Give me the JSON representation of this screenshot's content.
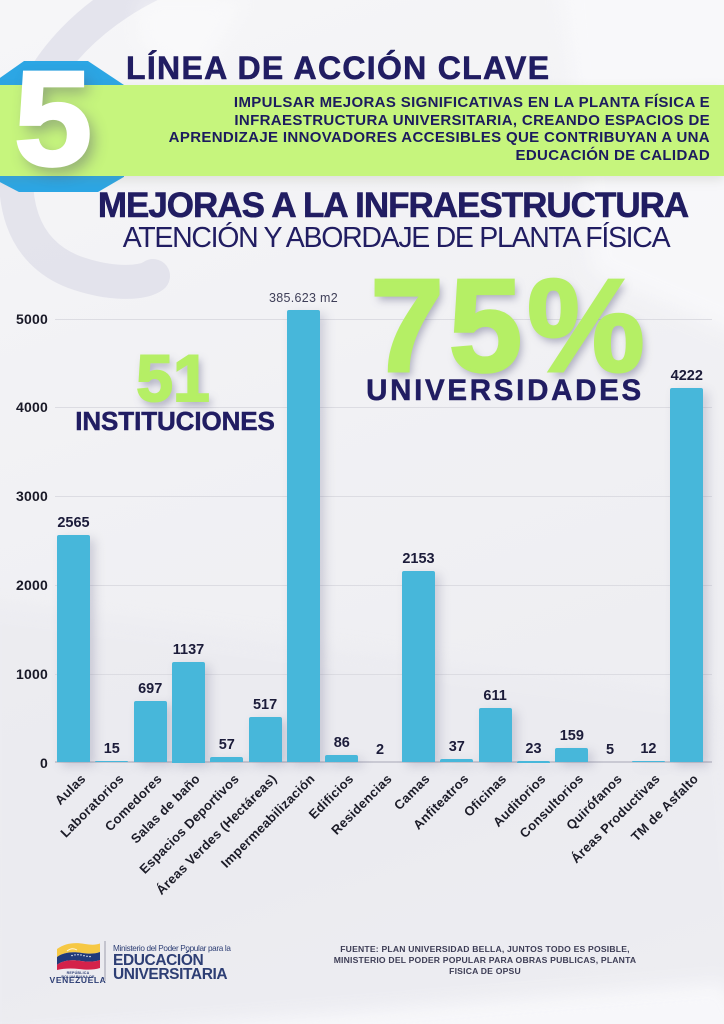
{
  "badge": {
    "number": "5"
  },
  "header": {
    "kicker": "LÍNEA DE ACCIÓN CLAVE",
    "description": "IMPULSAR MEJORAS SIGNIFICATIVAS EN LA PLANTA FÍSICA E\nINFRAESTRUCTURA UNIVERSITARIA, CREANDO ESPACIOS DE\nAPRENDIZAJE INNOVADORES ACCESIBLES QUE CONTRIBUYAN A UNA\nEDUCACIÓN DE CALIDAD",
    "title": "MEJORAS A LA INFRAESTRUCTURA",
    "subtitle": "ATENCIÓN Y ABORDAJE DE PLANTA FÍSICA"
  },
  "highlights": {
    "institutions": {
      "value": "51",
      "label": "INSTITUCIONES"
    },
    "universities": {
      "value": "75%",
      "label": "UNIVERSIDADES"
    }
  },
  "chart_data": {
    "type": "bar",
    "categories": [
      "Aulas",
      "Laboratorios",
      "Comedores",
      "Salas de baño",
      "Espacios Deportivos",
      "Áreas Verdes (Hectáreas)",
      "Impermeabilización",
      "Edificios",
      "Residencias",
      "Camas",
      "Anfiteatros",
      "Oficinas",
      "Auditorios",
      "Consultorios",
      "Quirófanos",
      "Áreas Productivas",
      "TM de Asfalto"
    ],
    "values": [
      2565,
      15,
      697,
      1137,
      57,
      517,
      385623,
      86,
      2,
      2153,
      37,
      611,
      23,
      159,
      5,
      12,
      4222
    ],
    "display_labels": [
      "2565",
      "15",
      "697",
      "1137",
      "57",
      "517",
      "385.623 m2",
      "86",
      "2",
      "2153",
      "37",
      "611",
      "23",
      "159",
      "5",
      "12",
      "4222"
    ],
    "plotted_values": [
      2565,
      15,
      697,
      1137,
      57,
      517,
      5100,
      86,
      2,
      2153,
      37,
      611,
      23,
      159,
      5,
      12,
      4222
    ],
    "ylim": [
      0,
      5000
    ],
    "yticks": [
      0,
      1000,
      2000,
      3000,
      4000,
      5000
    ],
    "grid": true,
    "legend": false,
    "bar_color": "#47b7da",
    "note": "Impermeabilización bar exceeds the 5000-unit axis and is labeled in m2"
  },
  "footer": {
    "logo": {
      "country_small": "REPÚBLICA BOLIVARIANA DE",
      "country": "VENEZUELA",
      "ministry_small": "Ministerio del Poder Popular para la",
      "ministry_line1": "EDUCACIÓN",
      "ministry_line2": "UNIVERSITARIA"
    },
    "source": "FUENTE: PLAN UNIVERSIDAD BELLA, JUNTOS TODO ES POSIBLE,\nMINISTERIO DEL PODER POPULAR PARA OBRAS PUBLICAS, PLANTA\nFISICA DE OPSU"
  },
  "colors": {
    "navy": "#211d62",
    "green_band": "#c6f57d",
    "green_big": "#b5ef65",
    "bar_cyan": "#45b5d9",
    "octagon_blue": "#2ca6e4"
  }
}
